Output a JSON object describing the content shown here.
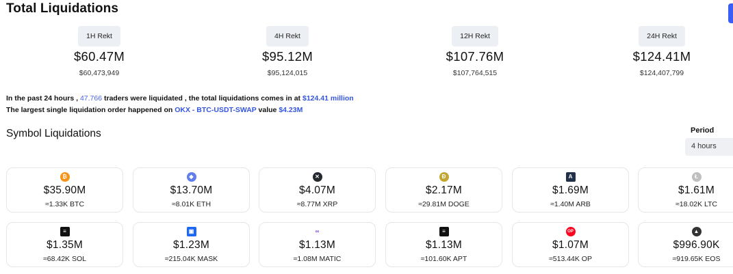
{
  "page": {
    "title": "Total Liquidations"
  },
  "stats": [
    {
      "label": "1H Rekt",
      "value": "$60.47M",
      "exact": "$60,473,949"
    },
    {
      "label": "4H Rekt",
      "value": "$95.12M",
      "exact": "$95,124,015"
    },
    {
      "label": "12H Rekt",
      "value": "$107.76M",
      "exact": "$107,764,515"
    },
    {
      "label": "24H Rekt",
      "value": "$124.41M",
      "exact": "$124,407,799"
    }
  ],
  "summary": {
    "line1_a": "In the past 24 hours ,",
    "traders": "47.766",
    "line1_b": "traders were liquidated , the total liquidations comes in at",
    "total": "$124.41 million",
    "line2_a": "The largest single liquidation order happened on",
    "order": "OKX - BTC-USDT-SWAP",
    "line2_b": "value",
    "value": "$4.23M"
  },
  "symbols": {
    "title": "Symbol Liquidations",
    "period_label": "Period",
    "period_value": "4 hours",
    "cards": [
      {
        "icon": "btc-icon",
        "glyph": "₿",
        "amount": "$35.90M",
        "qty": "≈1.33K BTC"
      },
      {
        "icon": "eth-icon",
        "glyph": "◆",
        "amount": "$13.70M",
        "qty": "≈8.01K ETH"
      },
      {
        "icon": "xrp-icon",
        "glyph": "✕",
        "amount": "$4.07M",
        "qty": "≈8.77M XRP"
      },
      {
        "icon": "doge-icon",
        "glyph": "Đ",
        "amount": "$2.17M",
        "qty": "≈29.81M DOGE"
      },
      {
        "icon": "arb-icon",
        "glyph": "A",
        "amount": "$1.69M",
        "qty": "≈1.40M ARB"
      },
      {
        "icon": "ltc-icon",
        "glyph": "Ł",
        "amount": "$1.61M",
        "qty": "≈18.02K LTC"
      },
      {
        "icon": "sol-icon",
        "glyph": "≡",
        "amount": "$1.35M",
        "qty": "≈68.42K SOL"
      },
      {
        "icon": "mask-icon",
        "glyph": "▣",
        "amount": "$1.23M",
        "qty": "≈215.04K MASK"
      },
      {
        "icon": "matic-icon",
        "glyph": "∞",
        "amount": "$1.13M",
        "qty": "≈1.08M MATIC"
      },
      {
        "icon": "apt-icon",
        "glyph": "≡",
        "amount": "$1.13M",
        "qty": "≈101.60K APT"
      },
      {
        "icon": "op-icon",
        "glyph": "OP",
        "amount": "$1.07M",
        "qty": "≈513.44K OP"
      },
      {
        "icon": "eos-icon",
        "glyph": "▲",
        "amount": "$996.90K",
        "qty": "≈919.65K EOS"
      }
    ]
  }
}
